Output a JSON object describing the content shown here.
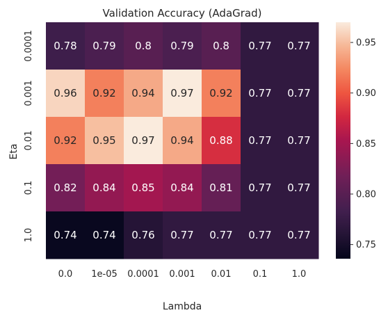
{
  "chart_data": {
    "type": "heatmap",
    "title": "Validation Accuracy (AdaGrad)",
    "xlabel": "Lambda",
    "ylabel": "Eta",
    "x_categories": [
      "0.0",
      "1e-05",
      "0.0001",
      "0.001",
      "0.01",
      "0.1",
      "1.0"
    ],
    "y_categories": [
      "0.0001",
      "0.001",
      "0.01",
      "0.1",
      "1.0"
    ],
    "values": [
      [
        0.78,
        0.79,
        0.8,
        0.79,
        0.8,
        0.77,
        0.77
      ],
      [
        0.96,
        0.92,
        0.94,
        0.97,
        0.92,
        0.77,
        0.77
      ],
      [
        0.92,
        0.95,
        0.97,
        0.94,
        0.88,
        0.77,
        0.77
      ],
      [
        0.82,
        0.84,
        0.85,
        0.84,
        0.81,
        0.77,
        0.77
      ],
      [
        0.74,
        0.74,
        0.76,
        0.77,
        0.77,
        0.77,
        0.77
      ]
    ],
    "colorbar": {
      "range": [
        0.736,
        0.97
      ],
      "ticks": [
        "0.75",
        "0.80",
        "0.85",
        "0.90",
        "0.95"
      ],
      "colormap": "rocket"
    },
    "grid": false
  }
}
